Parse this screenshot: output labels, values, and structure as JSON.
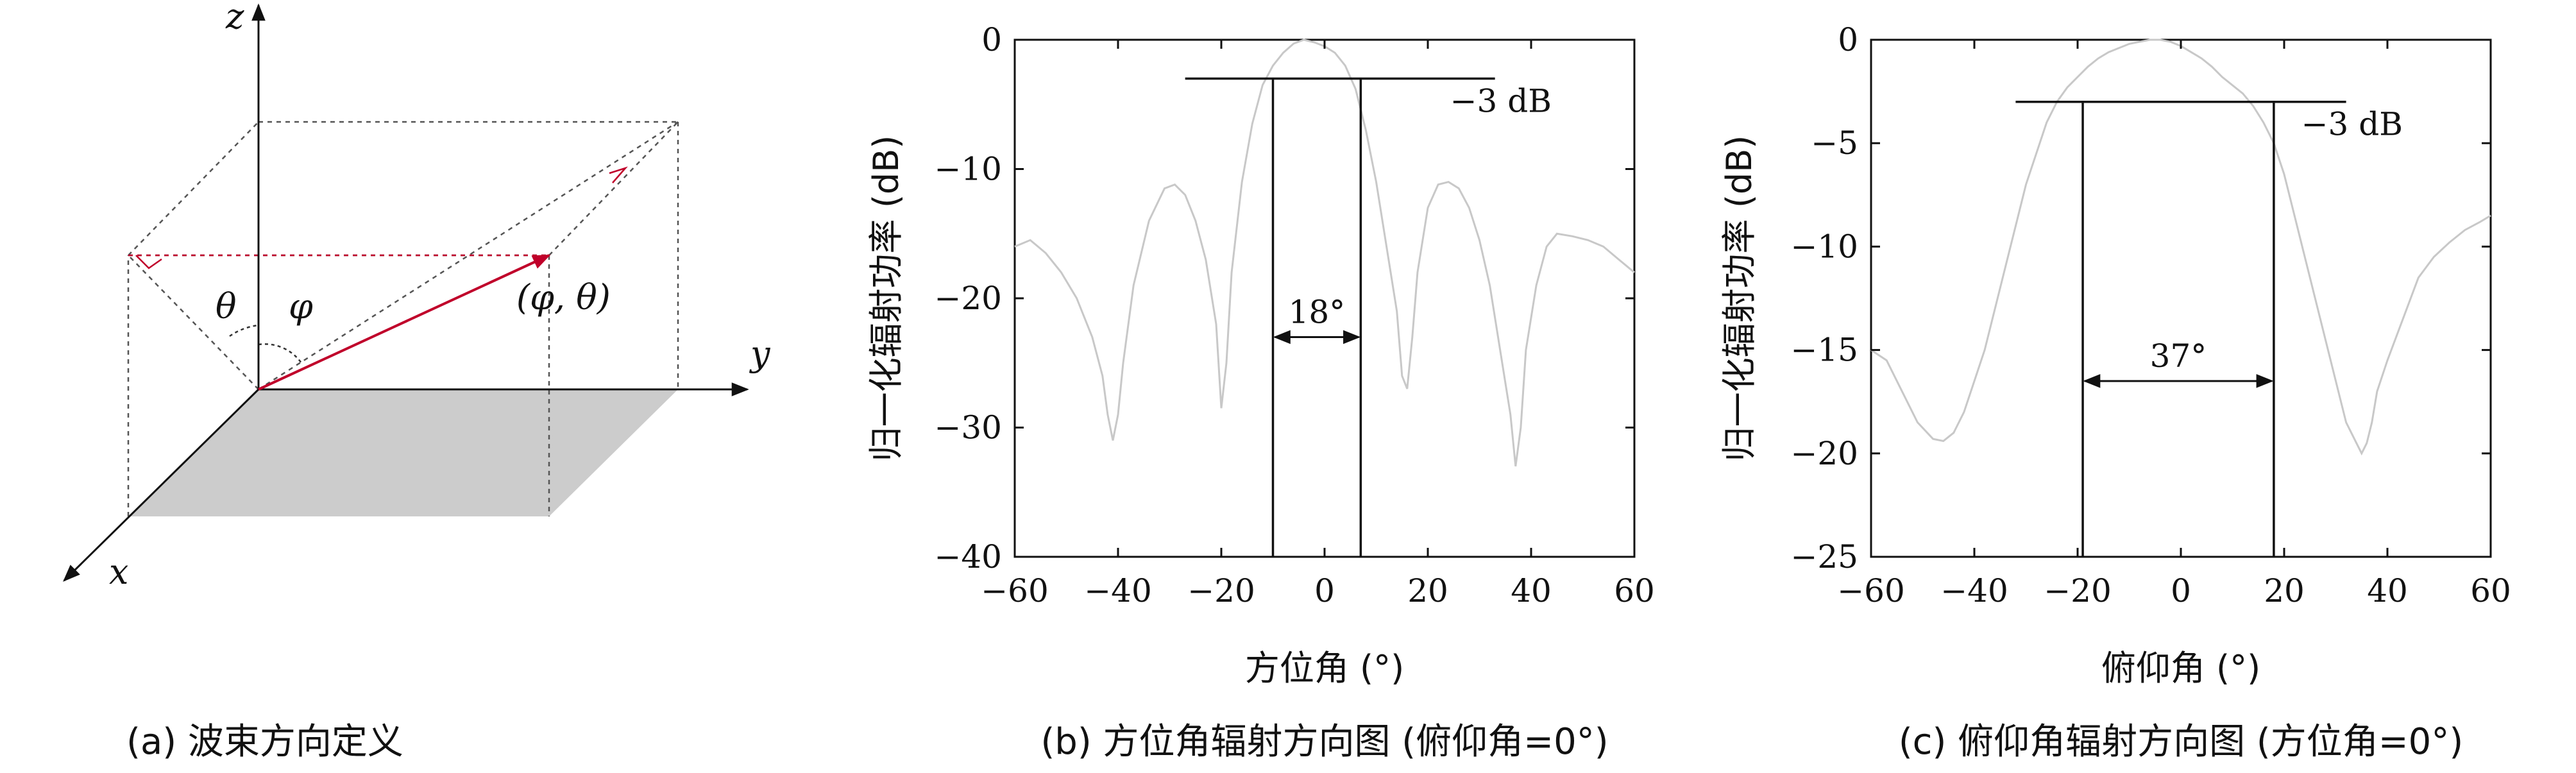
{
  "panel_a": {
    "caption": "(a) 波束方向定义",
    "axis_x": "x",
    "axis_y": "y",
    "axis_z": "z",
    "theta": "θ",
    "phi": "φ",
    "point_label": "(φ, θ)",
    "colors": {
      "beam": "#c0002a",
      "plane": "#cccccc",
      "dashed": "#555555"
    }
  },
  "chart_data": [
    {
      "type": "line",
      "caption": "(b) 方位角辐射方向图 (俯仰角=0°)",
      "xlabel": "方位角 (°)",
      "ylabel": "归一化辐射功率 (dB)",
      "xlim": [
        -60,
        60
      ],
      "ylim": [
        -40,
        0
      ],
      "xticks": [
        "−60",
        "−40",
        "−20",
        "0",
        "20",
        "40",
        "60"
      ],
      "yticks": [
        "0",
        "−10",
        "−20",
        "−30",
        "−40"
      ],
      "xtick_values": [
        -60,
        -40,
        -20,
        0,
        20,
        40,
        60
      ],
      "ytick_values": [
        0,
        -10,
        -20,
        -30,
        -40
      ],
      "line_color": "#c8c8c8",
      "x": [
        -60,
        -57,
        -54,
        -51,
        -48,
        -45,
        -43,
        -42,
        -41,
        -40,
        -39,
        -37,
        -34,
        -31,
        -29,
        -27,
        -25,
        -23,
        -21,
        -20,
        -19,
        -18,
        -16,
        -14,
        -12,
        -10,
        -8,
        -6,
        -4,
        -2,
        0,
        2,
        4,
        6,
        8,
        10,
        12,
        14,
        15,
        16,
        17,
        18,
        20,
        22,
        24,
        26,
        28,
        30,
        32,
        34,
        36,
        37,
        38,
        39,
        41,
        43,
        45,
        48,
        51,
        54,
        57,
        60
      ],
      "y": [
        -16,
        -15.5,
        -16.5,
        -18,
        -20,
        -23,
        -26,
        -29,
        -31,
        -29,
        -25,
        -19,
        -14,
        -11.5,
        -11.2,
        -12,
        -14,
        -17,
        -22,
        -28.5,
        -25,
        -18,
        -11,
        -6.5,
        -3.5,
        -2,
        -1,
        -0.3,
        0,
        -0.2,
        -0.5,
        -1,
        -2,
        -3.8,
        -7,
        -11,
        -16,
        -21,
        -26,
        -27,
        -23,
        -18,
        -13,
        -11.2,
        -11,
        -11.5,
        -13,
        -15.5,
        -19,
        -24,
        -29,
        -33,
        -30,
        -24,
        -19,
        -16,
        -15,
        -15.2,
        -15.5,
        -16,
        -17,
        -18
      ],
      "annotations": {
        "level_label": "−3 dB",
        "level_db": -3,
        "beamwidth_label": "18°",
        "beamwidth_left": -10,
        "beamwidth_right": 7,
        "level_line_from": -27,
        "level_line_to": 33,
        "arrow_y_db": -23
      }
    },
    {
      "type": "line",
      "caption": "(c) 俯仰角辐射方向图 (方位角=0°)",
      "xlabel": "俯仰角 (°)",
      "ylabel": "归一化辐射功率 (dB)",
      "xlim": [
        -60,
        60
      ],
      "ylim": [
        -25,
        0
      ],
      "xticks": [
        "−60",
        "−40",
        "−20",
        "0",
        "20",
        "40",
        "60"
      ],
      "yticks": [
        "0",
        "−5",
        "−10",
        "−15",
        "−20",
        "−25"
      ],
      "xtick_values": [
        -60,
        -40,
        -20,
        0,
        20,
        40,
        60
      ],
      "ytick_values": [
        0,
        -5,
        -10,
        -15,
        -20,
        -25
      ],
      "line_color": "#c8c8c8",
      "x": [
        -60,
        -57,
        -54,
        -51,
        -48,
        -46,
        -44,
        -42,
        -40,
        -38,
        -36,
        -34,
        -32,
        -30,
        -28,
        -26,
        -24,
        -22,
        -20,
        -18,
        -16,
        -14,
        -12,
        -10,
        -8,
        -6,
        -4,
        -2,
        0,
        2,
        4,
        6,
        8,
        10,
        12,
        14,
        16,
        18,
        20,
        22,
        24,
        26,
        28,
        30,
        32,
        34,
        35,
        36,
        37,
        38,
        40,
        43,
        46,
        49,
        52,
        55,
        58,
        60
      ],
      "y": [
        -15,
        -15.5,
        -17,
        -18.5,
        -19.3,
        -19.4,
        -19,
        -18,
        -16.5,
        -15,
        -13,
        -11,
        -9,
        -7,
        -5.5,
        -4,
        -3,
        -2.3,
        -1.8,
        -1.3,
        -0.9,
        -0.6,
        -0.4,
        -0.2,
        -0.1,
        0,
        0,
        -0.1,
        -0.3,
        -0.6,
        -0.9,
        -1.3,
        -1.8,
        -2.2,
        -2.6,
        -3.2,
        -4,
        -5,
        -6.5,
        -8.5,
        -10.5,
        -12.5,
        -14.5,
        -16.5,
        -18.5,
        -19.5,
        -20,
        -19.5,
        -18.5,
        -17,
        -15.5,
        -13.5,
        -11.5,
        -10.5,
        -9.8,
        -9.2,
        -8.8,
        -8.5
      ],
      "annotations": {
        "level_label": "−3 dB",
        "level_db": -3,
        "beamwidth_label": "37°",
        "beamwidth_left": -19,
        "beamwidth_right": 18,
        "level_line_from": -32,
        "level_line_to": 32,
        "arrow_y_db": -16.5
      }
    }
  ]
}
